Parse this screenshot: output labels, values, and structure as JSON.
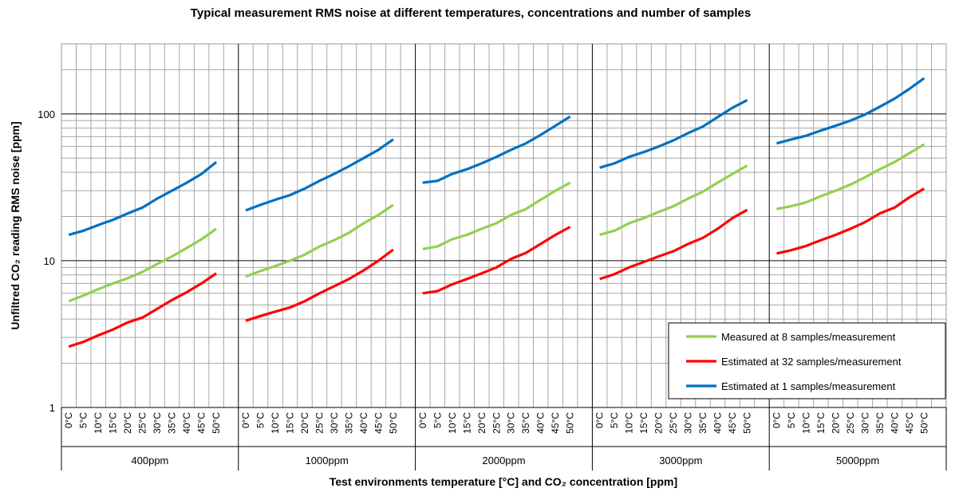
{
  "chart_data": {
    "type": "line",
    "title": "Typical measurement RMS noise at different temperatures, concentrations and number of samples",
    "x_label": "Test environments temperature [°C] and CO₂ concentration [ppm]",
    "y_label": "Unfiltred CO₂ reading RMS noise [ppm]",
    "log_y": true,
    "grid": true,
    "legend_position": "lower right",
    "ylim": [
      1,
      300
    ],
    "yticks": [
      1,
      10,
      100
    ],
    "yticks_minor": [
      2,
      3,
      4,
      5,
      6,
      7,
      8,
      9,
      20,
      30,
      40,
      50,
      60,
      70,
      80,
      90,
      200
    ],
    "groups": [
      "400ppm",
      "1000ppm",
      "2000ppm",
      "3000ppm",
      "5000ppm"
    ],
    "categories": [
      "0°C",
      "5°C",
      "10°C",
      "15°C",
      "20°C",
      "25°C",
      "30°C",
      "35°C",
      "40°C",
      "45°C",
      "50°C",
      null,
      "0°C",
      "5°C",
      "10°C",
      "15°C",
      "20°C",
      "25°C",
      "30°C",
      "35°C",
      "40°C",
      "45°C",
      "50°C",
      null,
      "0°C",
      "5°C",
      "10°C",
      "15°C",
      "20°C",
      "25°C",
      "30°C",
      "35°C",
      "40°C",
      "45°C",
      "50°C",
      null,
      "0°C",
      "5°C",
      "10°C",
      "15°C",
      "20°C",
      "25°C",
      "30°C",
      "35°C",
      "40°C",
      "45°C",
      "50°C",
      null,
      "0°C",
      "5°C",
      "10°C",
      "15°C",
      "20°C",
      "25°C",
      "30°C",
      "35°C",
      "40°C",
      "45°C",
      "50°C",
      null
    ],
    "series": [
      {
        "name": "Measured at 8 samples/measurement",
        "color": "#92d050",
        "values": [
          5.3,
          5.8,
          6.4,
          7,
          7.6,
          8.4,
          9.5,
          10.7,
          12.2,
          14,
          16.5,
          null,
          7.8,
          8.5,
          9.2,
          10,
          11,
          12.5,
          13.8,
          15.5,
          18,
          20.5,
          24,
          null,
          12,
          12.5,
          14,
          15,
          16.5,
          18,
          20.5,
          22.5,
          26,
          30,
          34,
          null,
          15,
          16,
          18,
          19.5,
          21.5,
          23.5,
          26.5,
          29.5,
          34,
          39,
          44.5,
          null,
          22.5,
          23.5,
          25,
          27.5,
          30,
          33,
          37,
          42,
          47,
          54,
          62,
          null
        ]
      },
      {
        "name": "Estimated at 32 samples/measurement",
        "color": "#ff0000",
        "values": [
          2.6,
          2.8,
          3.1,
          3.4,
          3.8,
          4.1,
          4.7,
          5.4,
          6.1,
          7,
          8.2,
          null,
          3.9,
          4.2,
          4.5,
          4.8,
          5.3,
          6,
          6.7,
          7.5,
          8.6,
          10,
          11.9,
          null,
          6,
          6.2,
          6.9,
          7.5,
          8.2,
          9,
          10.3,
          11.3,
          13,
          15,
          17,
          null,
          7.5,
          8.1,
          9,
          9.8,
          10.7,
          11.6,
          13,
          14.3,
          16.5,
          19.5,
          22.2,
          null,
          11.2,
          11.8,
          12.6,
          13.8,
          15,
          16.5,
          18.3,
          21,
          23,
          27,
          31,
          null
        ]
      },
      {
        "name": "Estimated at 1 samples/measurement",
        "color": "#0070c0",
        "values": [
          15,
          16,
          17.5,
          19,
          21,
          23,
          26.5,
          30,
          34,
          39,
          47,
          null,
          22,
          24,
          26,
          28,
          31,
          35,
          39,
          44,
          50,
          57,
          67,
          null,
          34,
          35,
          39,
          42,
          46,
          51,
          57,
          63,
          72,
          83,
          96,
          null,
          43,
          46,
          51,
          55,
          60,
          66,
          74,
          82,
          95,
          110,
          124,
          null,
          63,
          67,
          71,
          77,
          83,
          90,
          99,
          112,
          127,
          148,
          175,
          null
        ]
      }
    ]
  }
}
